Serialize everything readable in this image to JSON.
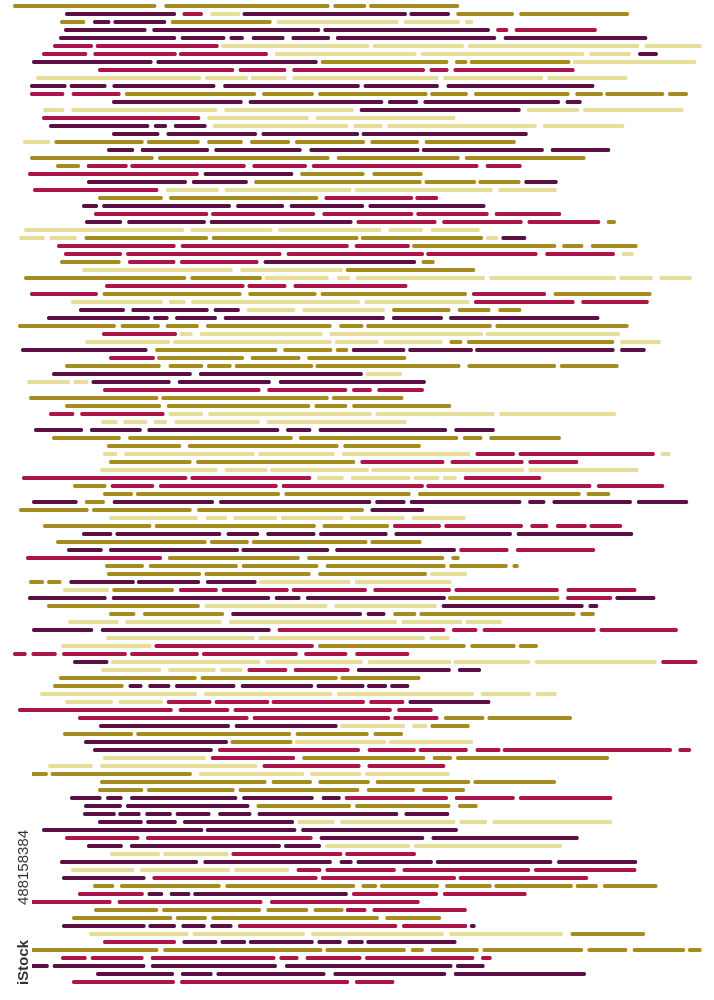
{
  "credit": {
    "brand": "iStock",
    "id": "488158384"
  }
}
